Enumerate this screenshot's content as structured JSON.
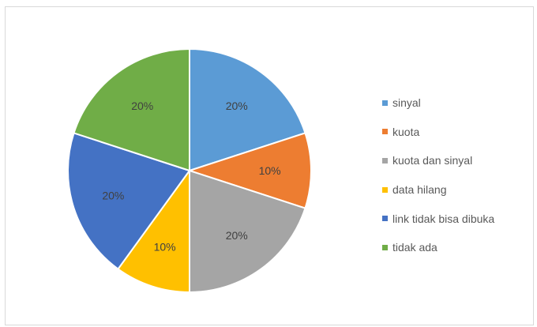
{
  "chart_data": {
    "type": "pie",
    "categories": [
      "sinyal",
      "kuota",
      "kuota dan sinyal",
      "data hilang",
      "link tidak bisa dibuka",
      "tidak ada"
    ],
    "values": [
      20,
      10,
      20,
      10,
      20,
      20
    ],
    "data_labels": [
      "20%",
      "10%",
      "20%",
      "10%",
      "20%",
      "20%"
    ],
    "colors": [
      "#5b9bd5",
      "#ed7d31",
      "#a5a5a5",
      "#ffc000",
      "#4472c4",
      "#70ad47"
    ],
    "legend_position": "right"
  }
}
